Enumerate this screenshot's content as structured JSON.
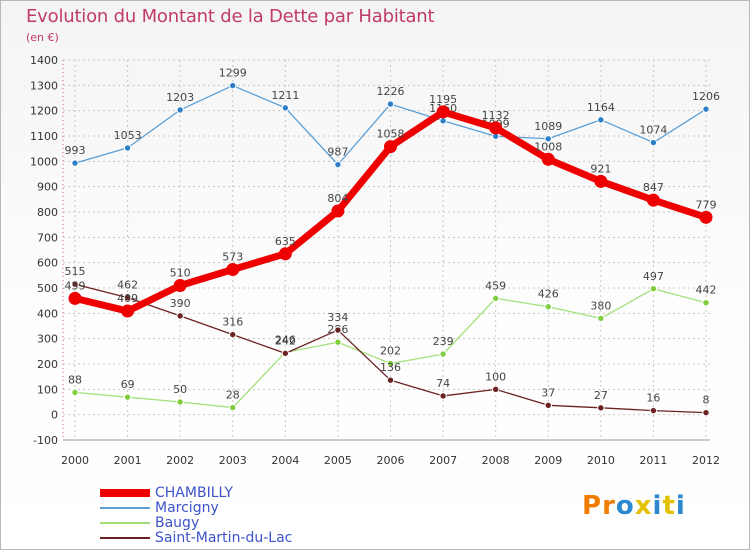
{
  "title": "Evolution du Montant de la Dette par Habitant",
  "unit_label": "(en €)",
  "colors": {
    "CHAMBILLY": "#ee0000",
    "Marcigny": "#5b9fd6",
    "Baugy": "#a3e07a",
    "Saint-Martin-du-Lac": "#6b2222",
    "grid": "#c8c8c8",
    "title": "#c03a6b",
    "legend_text": "#3f54c9"
  },
  "logo": {
    "text": "Proxiti",
    "letter_colors": [
      "#f07d00",
      "#f07d00",
      "#2d89cf",
      "#e3c100",
      "#2d89cf",
      "#e3c100",
      "#2d89cf"
    ]
  },
  "chart_data": {
    "type": "line",
    "title": "Evolution du Montant de la Dette par Habitant",
    "ylabel": "(en €)",
    "xlabel": "",
    "ylim": [
      -100,
      1400
    ],
    "y_ticks": [
      -100,
      0,
      100,
      200,
      300,
      400,
      500,
      600,
      700,
      800,
      900,
      1000,
      1100,
      1200,
      1300,
      1400
    ],
    "categories": [
      "2000",
      "2001",
      "2002",
      "2003",
      "2004",
      "2005",
      "2006",
      "2007",
      "2008",
      "2009",
      "2010",
      "2011",
      "2012"
    ],
    "grid": true,
    "legend_position": "bottom-left",
    "series": [
      {
        "name": "Marcigny",
        "values": [
          993,
          1053,
          1203,
          1299,
          1211,
          987,
          1226,
          1160,
          1099,
          1089,
          1164,
          1074,
          1206
        ],
        "labels": [
          "993",
          "1053",
          "1203",
          "1299",
          "1211",
          "987",
          "1226",
          "1160",
          "1099",
          "1089",
          "1164",
          "1074",
          "1206"
        ]
      },
      {
        "name": "Baugy",
        "values": [
          88,
          69,
          50,
          28,
          246,
          286,
          202,
          239,
          459,
          426,
          380,
          497,
          442
        ],
        "labels": [
          "88",
          "69",
          "50",
          "28",
          "246",
          "286",
          "202",
          "239",
          "459",
          "426",
          "380",
          "497",
          "442"
        ]
      },
      {
        "name": "Saint-Martin-du-Lac",
        "values": [
          515,
          462,
          390,
          316,
          242,
          334,
          136,
          74,
          100,
          37,
          27,
          16,
          8
        ],
        "labels": [
          "515",
          "462",
          "390",
          "316",
          "242",
          "334",
          "136",
          "74",
          "100",
          "37",
          "27",
          "16",
          "8"
        ]
      },
      {
        "name": "CHAMBILLY",
        "values": [
          459,
          409,
          510,
          573,
          635,
          804,
          1058,
          1195,
          1132,
          1008,
          921,
          847,
          779
        ],
        "labels": [
          "459",
          "409",
          "510",
          "573",
          "635",
          "804",
          "1058",
          "1195",
          "1132",
          "1008",
          "921",
          "847",
          "779"
        ]
      }
    ]
  }
}
